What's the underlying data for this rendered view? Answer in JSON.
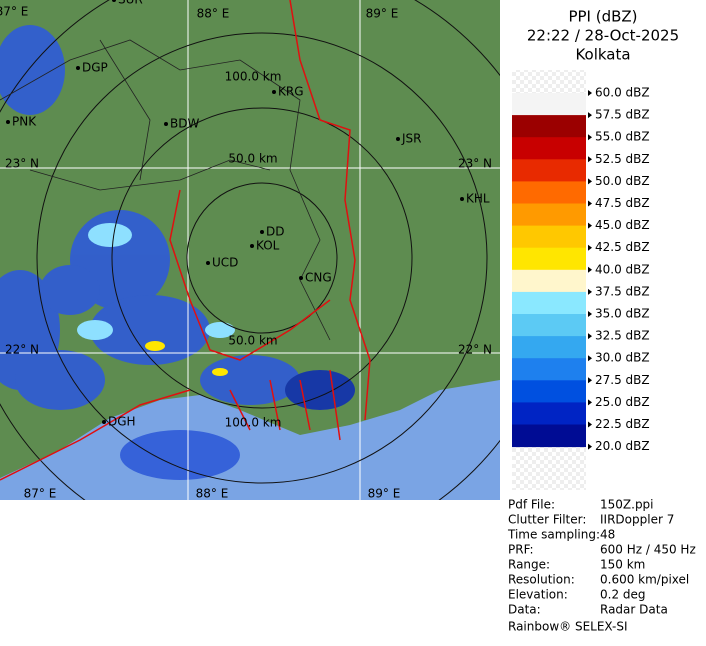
{
  "header": {
    "title": "PPI (dBZ)",
    "datetime": "22:22 / 28-Oct-2025",
    "site": "Kolkata"
  },
  "map": {
    "grid_labels": [
      "87° E",
      "88° E",
      "89° E",
      "23° N",
      "23° N",
      "22° N",
      "22° N",
      "87° E",
      "88° E",
      "89° E"
    ],
    "range_labels": [
      "100.0 km",
      "50.0 km",
      "50.0 km",
      "100.0 km"
    ],
    "cities": [
      "SUR",
      "DGP",
      "PNK",
      "BDW",
      "KRG",
      "JSR",
      "KHL",
      "DD",
      "KOL",
      "UCD",
      "CNG",
      "DGH"
    ]
  },
  "legend": {
    "labels": [
      "60.0 dBZ",
      "57.5 dBZ",
      "55.0 dBZ",
      "52.5 dBZ",
      "50.0 dBZ",
      "47.5 dBZ",
      "45.0 dBZ",
      "42.5 dBZ",
      "40.0 dBZ",
      "37.5 dBZ",
      "35.0 dBZ",
      "32.5 dBZ",
      "30.0 dBZ",
      "27.5 dBZ",
      "25.0 dBZ",
      "22.5 dBZ",
      "20.0 dBZ"
    ],
    "band_colors": [
      "#f4f4f4",
      "#9b0000",
      "#c80000",
      "#e82a00",
      "#ff6a00",
      "#ff9a00",
      "#ffc800",
      "#ffe600",
      "#fff6cc",
      "#8ae8ff",
      "#5ccaf4",
      "#34a8f0",
      "#1e80ee",
      "#0050e0",
      "#0024c4",
      "#000c94"
    ]
  },
  "info": {
    "rows": [
      [
        "Pdf File:",
        "150Z.ppi"
      ],
      [
        "Clutter Filter:",
        "IIRDoppler 7"
      ],
      [
        "Time sampling:",
        "48"
      ],
      [
        "PRF:",
        "600 Hz / 450 Hz"
      ],
      [
        "Range:",
        "150 km"
      ],
      [
        "Resolution:",
        "0.600 km/pixel"
      ],
      [
        "Elevation:",
        "0.2 deg"
      ],
      [
        "Data:",
        "Radar Data"
      ]
    ],
    "footer": "Rainbow® SELEX-SI"
  }
}
